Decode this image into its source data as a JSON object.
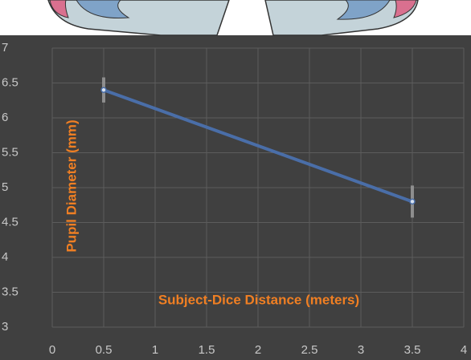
{
  "chart_data": {
    "type": "line",
    "xlabel": "Subject-Dice Distance (meters)",
    "ylabel": "Pupil Diameter (mm)",
    "x": [
      0.5,
      3.5
    ],
    "values": [
      6.4,
      4.8
    ],
    "errors": [
      0.18,
      0.23
    ],
    "color": "#4a6ea8",
    "error_color": "#9a9a9a",
    "xlim": [
      0,
      4
    ],
    "xticks": [
      0,
      0.5,
      1,
      1.5,
      2,
      2.5,
      3,
      3.5,
      4
    ],
    "ylim": [
      3,
      7
    ],
    "yticks": [
      3,
      3.5,
      4,
      4.5,
      5,
      5.5,
      6,
      6.5,
      7
    ],
    "grid": true
  }
}
